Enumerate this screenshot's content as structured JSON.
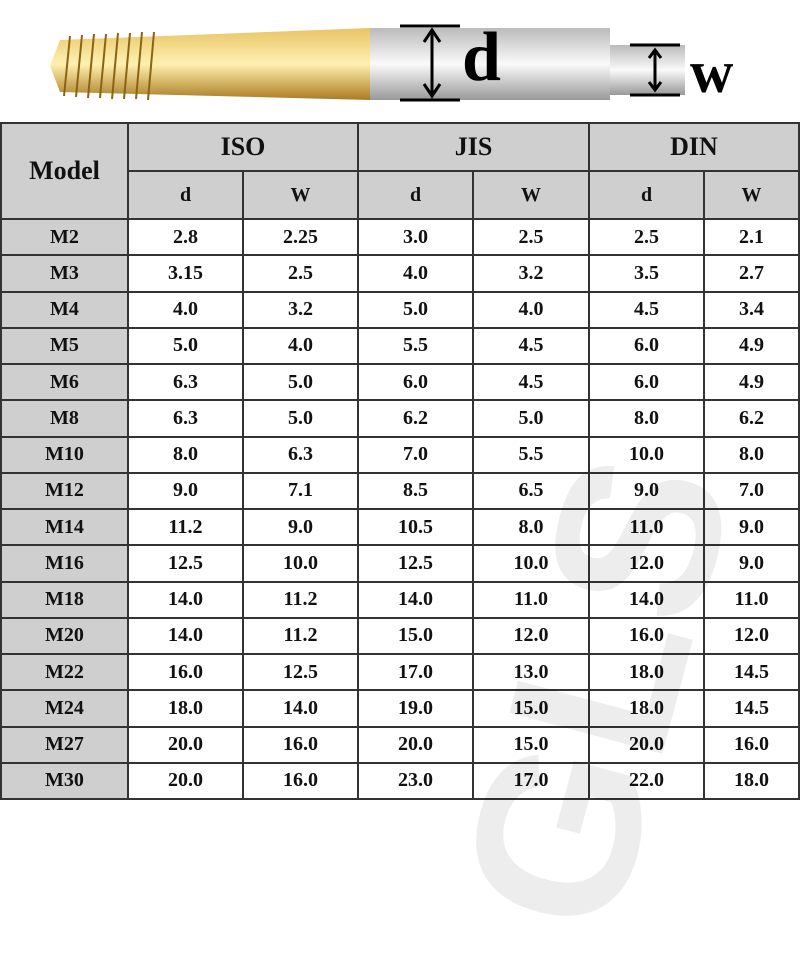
{
  "header": {
    "d_label": "d",
    "w_label": "w"
  },
  "watermark": "GLS",
  "table": {
    "model_header": "Model",
    "groups": [
      "ISO",
      "JIS",
      "DIN"
    ],
    "subheaders": [
      "d",
      "W",
      "d",
      "W",
      "d",
      "W"
    ],
    "rows": [
      [
        "M2",
        "2.8",
        "2.25",
        "3.0",
        "2.5",
        "2.5",
        "2.1"
      ],
      [
        "M3",
        "3.15",
        "2.5",
        "4.0",
        "3.2",
        "3.5",
        "2.7"
      ],
      [
        "M4",
        "4.0",
        "3.2",
        "5.0",
        "4.0",
        "4.5",
        "3.4"
      ],
      [
        "M5",
        "5.0",
        "4.0",
        "5.5",
        "4.5",
        "6.0",
        "4.9"
      ],
      [
        "M6",
        "6.3",
        "5.0",
        "6.0",
        "4.5",
        "6.0",
        "4.9"
      ],
      [
        "M8",
        "6.3",
        "5.0",
        "6.2",
        "5.0",
        "8.0",
        "6.2"
      ],
      [
        "M10",
        "8.0",
        "6.3",
        "7.0",
        "5.5",
        "10.0",
        "8.0"
      ],
      [
        "M12",
        "9.0",
        "7.1",
        "8.5",
        "6.5",
        "9.0",
        "7.0"
      ],
      [
        "M14",
        "11.2",
        "9.0",
        "10.5",
        "8.0",
        "11.0",
        "9.0"
      ],
      [
        "M16",
        "12.5",
        "10.0",
        "12.5",
        "10.0",
        "12.0",
        "9.0"
      ],
      [
        "M18",
        "14.0",
        "11.2",
        "14.0",
        "11.0",
        "14.0",
        "11.0"
      ],
      [
        "M20",
        "14.0",
        "11.2",
        "15.0",
        "12.0",
        "16.0",
        "12.0"
      ],
      [
        "M22",
        "16.0",
        "12.5",
        "17.0",
        "13.0",
        "18.0",
        "14.5"
      ],
      [
        "M24",
        "18.0",
        "14.0",
        "19.0",
        "15.0",
        "18.0",
        "14.5"
      ],
      [
        "M27",
        "20.0",
        "16.0",
        "20.0",
        "15.0",
        "20.0",
        "16.0"
      ],
      [
        "M30",
        "20.0",
        "16.0",
        "23.0",
        "17.0",
        "22.0",
        "18.0"
      ]
    ]
  }
}
